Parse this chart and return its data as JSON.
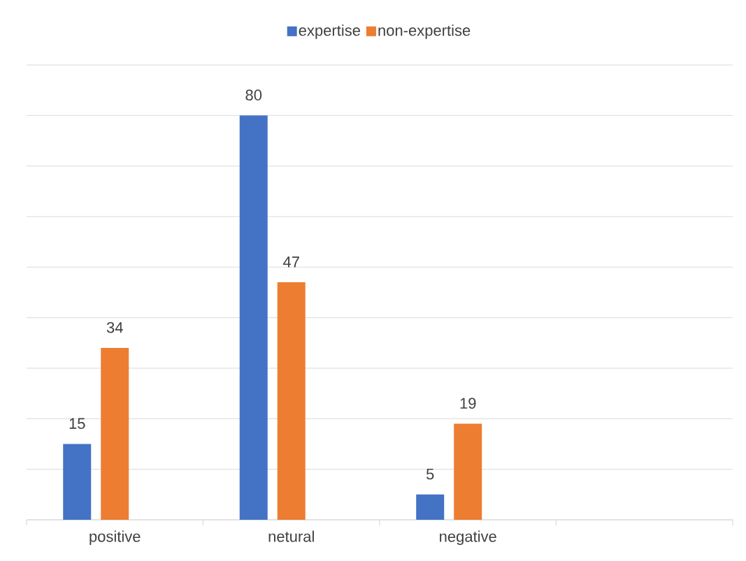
{
  "chart_data": {
    "type": "bar",
    "categories": [
      "positive",
      "netural",
      "negative",
      null
    ],
    "series": [
      {
        "name": "expertise",
        "color": "#4472c4",
        "values": [
          15,
          80,
          5,
          null
        ]
      },
      {
        "name": "non-expertise",
        "color": "#ed7d31",
        "values": [
          34,
          47,
          19,
          null
        ]
      },
      {
        "color": "#ffc000",
        "values": [
          null,
          null,
          null,
          null
        ]
      }
    ],
    "ylim": [
      0,
      90
    ],
    "yticks": [
      {
        "value": 0,
        "label": null
      },
      {
        "value": 10,
        "label": null
      },
      {
        "value": 20,
        "label": null
      },
      {
        "value": 30,
        "label": null
      },
      {
        "value": 40,
        "label": null
      },
      {
        "value": 50,
        "label": null
      },
      {
        "value": 60,
        "label": null
      },
      {
        "value": 70,
        "label": null
      },
      {
        "value": 80,
        "label": null
      },
      {
        "value": 90,
        "label": null
      }
    ],
    "tick_labels": "x",
    "grid": "y",
    "legend": "top",
    "data_labels": true
  }
}
